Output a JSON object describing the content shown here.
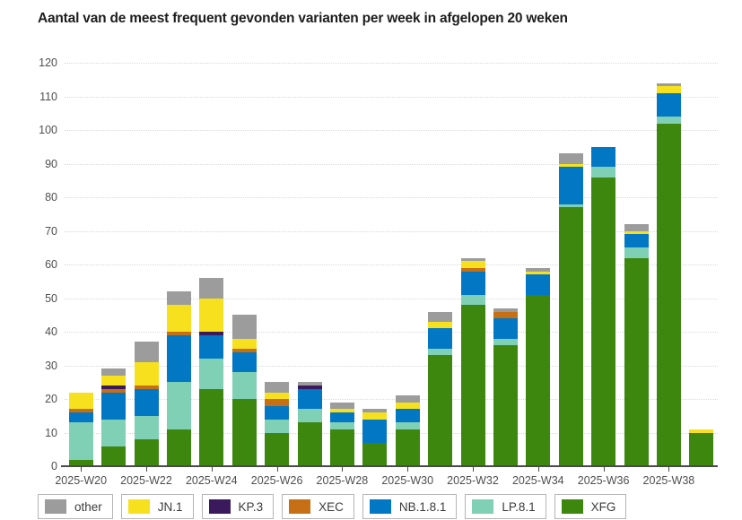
{
  "title": "Aantal van de meest frequent gevonden varianten per week in afgelopen 20 weken",
  "chart_data": {
    "type": "bar",
    "stacked": true,
    "title": "Aantal van de meest frequent gevonden varianten per week in afgelopen 20 weken",
    "xlabel": "",
    "ylabel": "",
    "ylim": [
      0,
      120
    ],
    "y_tick_step": 10,
    "grid": "horizontal-dotted",
    "legend_position": "bottom",
    "categories": [
      "2025-W20",
      "2025-W21",
      "2025-W22",
      "2025-W23",
      "2025-W24",
      "2025-W25",
      "2025-W26",
      "2025-W27",
      "2025-W28",
      "2025-W29",
      "2025-W30",
      "2025-W31",
      "2025-W32",
      "2025-W33",
      "2025-W34",
      "2025-W35",
      "2025-W36",
      "2025-W37",
      "2025-W38",
      "2025-W39"
    ],
    "x_labeled_categories": [
      "2025-W20",
      "2025-W22",
      "2025-W24",
      "2025-W26",
      "2025-W28",
      "2025-W30",
      "2025-W32",
      "2025-W34",
      "2025-W36",
      "2025-W38"
    ],
    "series": [
      {
        "name": "XFG",
        "color": "#3d870f",
        "values": [
          2,
          6,
          8,
          11,
          23,
          20,
          10,
          13,
          11,
          7,
          11,
          33,
          48,
          36,
          51,
          77,
          86,
          62,
          102,
          10
        ]
      },
      {
        "name": "LP.8.1",
        "color": "#7fd0b5",
        "values": [
          11,
          8,
          7,
          14,
          9,
          8,
          4,
          4,
          2,
          0,
          2,
          2,
          3,
          2,
          0,
          1,
          3,
          3,
          2,
          0
        ]
      },
      {
        "name": "NB.1.8.1",
        "color": "#0277c4",
        "values": [
          3,
          8,
          8,
          14,
          7,
          6,
          4,
          6,
          3,
          7,
          4,
          6,
          7,
          6,
          6,
          11,
          6,
          4,
          7,
          0
        ]
      },
      {
        "name": "XEC",
        "color": "#c76f14",
        "values": [
          1,
          1,
          1,
          1,
          0,
          1,
          2,
          0,
          0,
          0,
          0,
          0,
          1,
          2,
          0,
          0,
          0,
          0,
          0,
          0
        ]
      },
      {
        "name": "KP.3",
        "color": "#3a1a5c",
        "values": [
          0,
          1,
          0,
          0,
          1,
          0,
          0,
          1,
          0,
          0,
          0,
          0,
          0,
          0,
          0,
          0,
          0,
          0,
          0,
          0
        ]
      },
      {
        "name": "JN.1",
        "color": "#f7e11e",
        "values": [
          5,
          3,
          7,
          8,
          10,
          3,
          2,
          0,
          1,
          2,
          2,
          2,
          2,
          0,
          1,
          1,
          0,
          1,
          2,
          1
        ]
      },
      {
        "name": "other",
        "color": "#9c9c9c",
        "values": [
          0,
          2,
          6,
          4,
          6,
          7,
          3,
          1,
          2,
          1,
          2,
          3,
          1,
          1,
          1,
          3,
          0,
          2,
          1,
          0
        ]
      }
    ],
    "totals": [
      22,
      29,
      37,
      52,
      56,
      45,
      25,
      25,
      19,
      17,
      21,
      46,
      62,
      47,
      59,
      93,
      95,
      72,
      114,
      11
    ],
    "legend_order": [
      "other",
      "JN.1",
      "KP.3",
      "XEC",
      "NB.1.8.1",
      "LP.8.1",
      "XFG"
    ]
  }
}
